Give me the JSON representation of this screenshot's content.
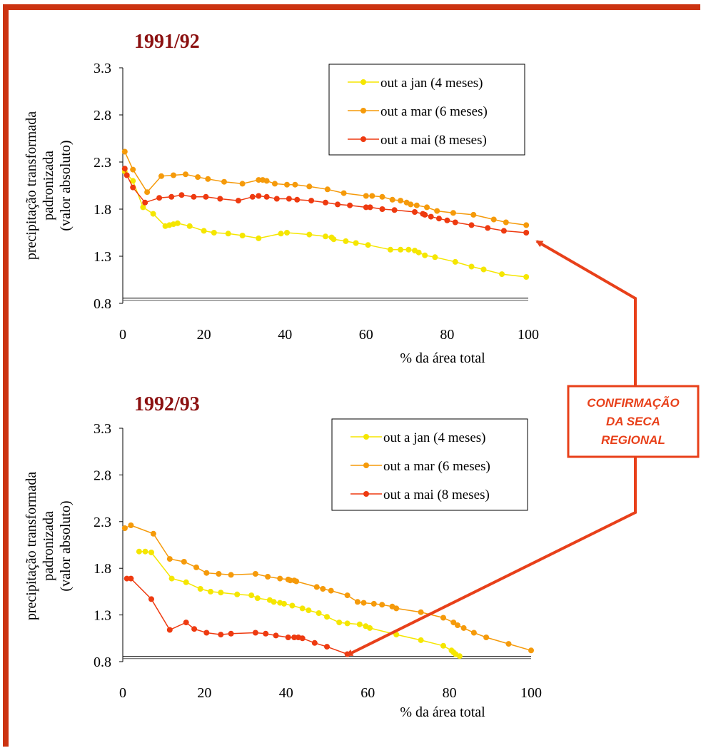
{
  "colors": {
    "frame": "#cc3311",
    "title": "#8b1010",
    "series": [
      "#f5e600",
      "#f59a0a",
      "#ee3a10"
    ],
    "arrow": "#e8401a",
    "callout_text": "#e8401a"
  },
  "callout": {
    "lines": [
      "CONFIRMAÇÃO",
      "DA SECA",
      "REGIONAL"
    ]
  },
  "chart_data": [
    {
      "type": "line",
      "title": "1991/92",
      "xlabel": "% da área total",
      "ylabel_lines": [
        "precipitação transformada",
        "padronizada",
        "(valor absoluto)"
      ],
      "xlim": [
        0,
        100
      ],
      "ylim": [
        0.8,
        3.3
      ],
      "xticks": [
        "0",
        "20",
        "40",
        "60",
        "80",
        "100"
      ],
      "yticks": [
        "0.8",
        "1.3",
        "1.8",
        "2.3",
        "2.8",
        "3.3"
      ],
      "threshold": 0.84,
      "legend_position": "top-right",
      "series": [
        {
          "name": "out a jan (4 meses)",
          "x": [
            0.5,
            2.5,
            5,
            7.5,
            10.5,
            11.5,
            12.5,
            13.5,
            16.5,
            20,
            22.5,
            26,
            29.5,
            33.5,
            39,
            40.5,
            46,
            50,
            51.5,
            52,
            55,
            57.5,
            60.5,
            66,
            68.5,
            70.5,
            72,
            73,
            74.5,
            77,
            82,
            86,
            89,
            93.5,
            99.5
          ],
          "y": [
            2.2,
            2.1,
            1.82,
            1.75,
            1.62,
            1.63,
            1.64,
            1.65,
            1.62,
            1.57,
            1.55,
            1.54,
            1.52,
            1.49,
            1.54,
            1.55,
            1.53,
            1.51,
            1.5,
            1.48,
            1.46,
            1.44,
            1.42,
            1.37,
            1.37,
            1.37,
            1.36,
            1.34,
            1.31,
            1.29,
            1.24,
            1.19,
            1.16,
            1.11,
            1.08
          ]
        },
        {
          "name": "out a mar (6 meses)",
          "x": [
            0.5,
            2.5,
            6,
            9.5,
            12.5,
            15.5,
            18.5,
            21,
            25,
            29.5,
            33.5,
            34.5,
            35.5,
            37.5,
            40.5,
            42.5,
            46,
            50.5,
            54.5,
            60,
            61.5,
            64,
            66.5,
            68.5,
            70,
            71,
            72.5,
            75,
            77.5,
            81.5,
            86.5,
            91.5,
            94.5,
            99.5
          ],
          "y": [
            2.41,
            2.22,
            1.98,
            2.15,
            2.16,
            2.17,
            2.14,
            2.12,
            2.09,
            2.07,
            2.11,
            2.11,
            2.1,
            2.07,
            2.06,
            2.06,
            2.04,
            2.01,
            1.97,
            1.94,
            1.94,
            1.93,
            1.9,
            1.89,
            1.87,
            1.85,
            1.84,
            1.82,
            1.78,
            1.76,
            1.74,
            1.69,
            1.66,
            1.63
          ]
        },
        {
          "name": "out a mai (8 meses)",
          "x": [
            0.5,
            1,
            2.5,
            5.5,
            9,
            12,
            14.5,
            17.5,
            20.5,
            24,
            28.5,
            32,
            33.5,
            35.5,
            38,
            41,
            43,
            46.5,
            50,
            53,
            56,
            60,
            61,
            64,
            67,
            72,
            74,
            74.5,
            76,
            78,
            80,
            82,
            86,
            90,
            94,
            99.5
          ],
          "y": [
            2.23,
            2.16,
            2.03,
            1.87,
            1.92,
            1.93,
            1.95,
            1.93,
            1.93,
            1.91,
            1.89,
            1.93,
            1.94,
            1.93,
            1.91,
            1.91,
            1.9,
            1.89,
            1.87,
            1.85,
            1.84,
            1.82,
            1.82,
            1.8,
            1.79,
            1.77,
            1.75,
            1.74,
            1.72,
            1.7,
            1.68,
            1.66,
            1.63,
            1.6,
            1.57,
            1.55
          ]
        }
      ]
    },
    {
      "type": "line",
      "title": "1992/93",
      "xlabel": "% da área total",
      "ylabel_lines": [
        "precipitação transformada",
        "padronizada",
        "(valor absoluto)"
      ],
      "xlim": [
        0,
        100
      ],
      "ylim": [
        0.8,
        3.3
      ],
      "xticks": [
        "0",
        "20",
        "40",
        "60",
        "80",
        "100"
      ],
      "yticks": [
        "0.8",
        "1.3",
        "1.8",
        "2.3",
        "2.8",
        "3.3"
      ],
      "threshold": 0.84,
      "legend_position": "top-right",
      "series": [
        {
          "name": "out a jan (4 meses)",
          "x": [
            4,
            5.5,
            7,
            12,
            15.5,
            19,
            21.5,
            24,
            28,
            31.5,
            33,
            36,
            37,
            38.5,
            39.5,
            41.5,
            44,
            45.5,
            48,
            50,
            53,
            55,
            58,
            59.5,
            60.5,
            67,
            73,
            78.5,
            80.5,
            81,
            81.5,
            82.5
          ],
          "y": [
            1.98,
            1.98,
            1.97,
            1.69,
            1.65,
            1.58,
            1.55,
            1.54,
            1.52,
            1.51,
            1.48,
            1.46,
            1.44,
            1.43,
            1.42,
            1.4,
            1.37,
            1.35,
            1.32,
            1.28,
            1.22,
            1.21,
            1.2,
            1.18,
            1.16,
            1.09,
            1.03,
            0.97,
            0.92,
            0.9,
            0.88,
            0.86
          ]
        },
        {
          "name": "out a mar (6 meses)",
          "x": [
            0.5,
            2,
            7.5,
            11.5,
            15,
            18,
            20.5,
            23.5,
            26.5,
            32.5,
            35.5,
            38.5,
            40.5,
            41,
            42,
            42.5,
            47.5,
            49,
            51,
            55,
            57.5,
            59,
            61.5,
            63.5,
            66,
            67,
            73,
            78.5,
            81,
            82,
            83.5,
            86,
            89,
            94.5,
            100
          ],
          "y": [
            2.23,
            2.26,
            2.17,
            1.9,
            1.87,
            1.81,
            1.75,
            1.74,
            1.73,
            1.74,
            1.71,
            1.69,
            1.68,
            1.67,
            1.67,
            1.66,
            1.6,
            1.58,
            1.56,
            1.51,
            1.44,
            1.43,
            1.42,
            1.41,
            1.39,
            1.37,
            1.33,
            1.27,
            1.22,
            1.19,
            1.16,
            1.11,
            1.06,
            0.99,
            0.92
          ]
        },
        {
          "name": "out a mai (8 meses)",
          "x": [
            1,
            2,
            7,
            11.5,
            15.5,
            17.5,
            20.5,
            24,
            26.5,
            32.5,
            35,
            37.5,
            40.5,
            42,
            43,
            44,
            47,
            50,
            55
          ],
          "y": [
            1.69,
            1.69,
            1.47,
            1.14,
            1.22,
            1.15,
            1.11,
            1.09,
            1.1,
            1.11,
            1.1,
            1.08,
            1.06,
            1.06,
            1.06,
            1.05,
            1.0,
            0.96,
            0.88
          ]
        }
      ]
    }
  ]
}
